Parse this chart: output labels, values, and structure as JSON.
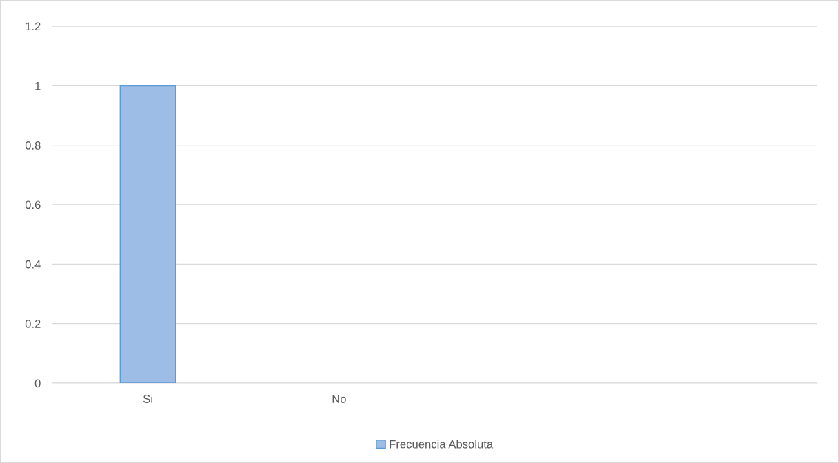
{
  "chart_data": {
    "type": "bar",
    "categories": [
      "Si",
      "No",
      null,
      null
    ],
    "series": [
      {
        "name": "Frecuencia Absoluta",
        "color": "#9dbde6",
        "values": [
          1,
          null,
          null,
          null
        ]
      }
    ],
    "ylim": [
      0,
      1.2
    ],
    "yticks": [
      0,
      0.2,
      0.4,
      0.6,
      0.8,
      1,
      1.2
    ],
    "grid": "y",
    "legend": "bottom"
  }
}
